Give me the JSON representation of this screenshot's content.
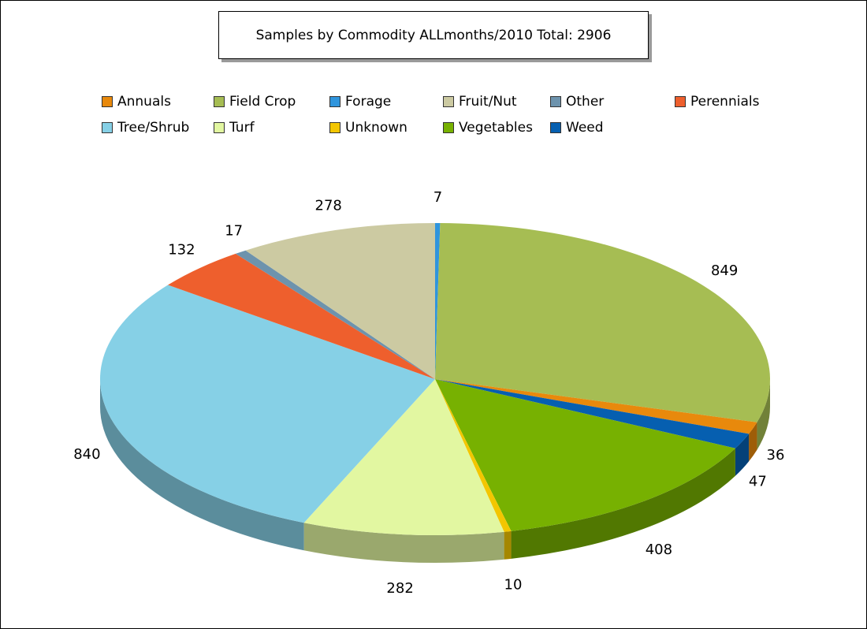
{
  "chart_data": {
    "type": "pie",
    "title": "Samples by Commodity ALLmonths/2010 Total: 2906",
    "legend_position": "top",
    "categories": [
      "Annuals",
      "Field Crop",
      "Forage",
      "Fruit/Nut",
      "Other",
      "Perennials",
      "Tree/Shrub",
      "Turf",
      "Unknown",
      "Vegetables",
      "Weed"
    ],
    "values": [
      36,
      849,
      7,
      278,
      17,
      132,
      840,
      282,
      10,
      408,
      47
    ],
    "value_labels": [
      "36",
      "849",
      "7",
      "278",
      "17",
      "132",
      "840",
      "282",
      "10",
      "408",
      "47"
    ],
    "colors": {
      "Annuals": "#e8890c",
      "Field Crop": "#a6bd53",
      "Forage": "#2f95dd",
      "Fruit/Nut": "#cccaa2",
      "Other": "#6d93ad",
      "Perennials": "#ee5f2d",
      "Tree/Shrub": "#86d0e6",
      "Turf": "#e2f7a1",
      "Unknown": "#f3c600",
      "Vegetables": "#77b101",
      "Weed": "#065fb0"
    },
    "slice_order_clockwise_from_top": [
      "Forage",
      "Field Crop",
      "Annuals",
      "Weed",
      "Vegetables",
      "Unknown",
      "Turf",
      "Tree/Shrub",
      "Perennials",
      "Other",
      "Fruit/Nut"
    ],
    "style": "3d-pie"
  }
}
